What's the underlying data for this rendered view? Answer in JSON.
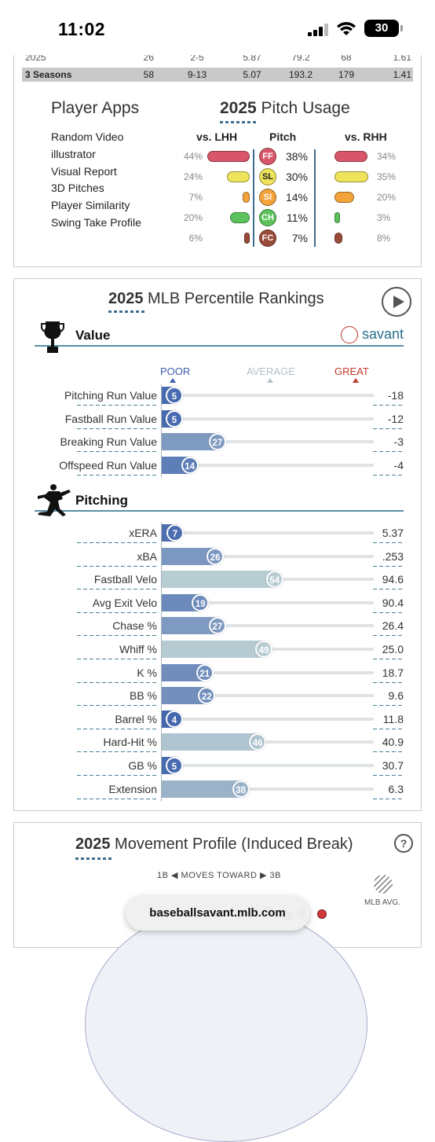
{
  "status": {
    "time": "11:02",
    "battery": "30"
  },
  "stats_table": {
    "rows": [
      {
        "season": "2025",
        "c1": "26",
        "c2": "2-5",
        "c3": "5.87",
        "c4": "79.2",
        "c5": "68",
        "c6": "1.61"
      },
      {
        "season": "3 Seasons",
        "c1": "58",
        "c2": "9-13",
        "c3": "5.07",
        "c4": "193.2",
        "c5": "179",
        "c6": "1.41"
      }
    ]
  },
  "player_apps": {
    "title": "Player Apps",
    "items": [
      "Random Video",
      "illustrator",
      "Visual Report",
      "3D Pitches",
      "Player Similarity",
      "Swing Take Profile"
    ]
  },
  "pitch_usage": {
    "title_year": "2025",
    "title_rest": " Pitch Usage",
    "headers": {
      "lhh": "vs. LHH",
      "pitch": "Pitch",
      "rhh": "vs. RHH"
    },
    "rows": [
      {
        "code": "FF",
        "pct": "38%",
        "lhh": "44%",
        "rhh": "34%",
        "lhh_val": 44,
        "rhh_val": 34,
        "color": "#d9566a",
        "text_color": "#ffffff"
      },
      {
        "code": "SL",
        "pct": "30%",
        "lhh": "24%",
        "rhh": "35%",
        "lhh_val": 24,
        "rhh_val": 35,
        "color": "#eee35a",
        "text_color": "#222222"
      },
      {
        "code": "SI",
        "pct": "14%",
        "lhh": "7%",
        "rhh": "20%",
        "lhh_val": 7,
        "rhh_val": 20,
        "color": "#f2a33a",
        "text_color": "#ffffff"
      },
      {
        "code": "CH",
        "pct": "11%",
        "lhh": "20%",
        "rhh": "3%",
        "lhh_val": 20,
        "rhh_val": 3,
        "color": "#5cc35c",
        "text_color": "#ffffff"
      },
      {
        "code": "FC",
        "pct": "7%",
        "lhh": "6%",
        "rhh": "8%",
        "lhh_val": 6,
        "rhh_val": 8,
        "color": "#9a4a3a",
        "text_color": "#ffffff"
      }
    ]
  },
  "percentile": {
    "title_year": "2025",
    "title_rest": " MLB Percentile Rankings",
    "value_label": "Value",
    "savant_label": "savant",
    "pitching_label": "Pitching",
    "scale": {
      "poor": "POOR",
      "average": "AVERAGE",
      "great": "GREAT"
    },
    "value_rows": [
      {
        "name": "Pitching Run Value",
        "pct": 5,
        "val": "-18"
      },
      {
        "name": "Fastball Run Value",
        "pct": 5,
        "val": "-12"
      },
      {
        "name": "Breaking Run Value",
        "pct": 27,
        "val": "-3"
      },
      {
        "name": "Offspeed Run Value",
        "pct": 14,
        "val": "-4"
      }
    ],
    "pitching_rows": [
      {
        "name": "xERA",
        "pct": 7,
        "val": "5.37"
      },
      {
        "name": "xBA",
        "pct": 26,
        "val": ".253"
      },
      {
        "name": "Fastball Velo",
        "pct": 54,
        "val": "94.6"
      },
      {
        "name": "Avg Exit Velo",
        "pct": 19,
        "val": "90.4"
      },
      {
        "name": "Chase %",
        "pct": 27,
        "val": "26.4"
      },
      {
        "name": "Whiff %",
        "pct": 49,
        "val": "25.0"
      },
      {
        "name": "K %",
        "pct": 21,
        "val": "18.7"
      },
      {
        "name": "BB %",
        "pct": 22,
        "val": "9.6"
      },
      {
        "name": "Barrel %",
        "pct": 4,
        "val": "11.8"
      },
      {
        "name": "Hard-Hit %",
        "pct": 46,
        "val": "40.9"
      },
      {
        "name": "GB %",
        "pct": 5,
        "val": "30.7"
      },
      {
        "name": "Extension",
        "pct": 38,
        "val": "6.3"
      }
    ],
    "colors": {
      "poor": "#3b5fac",
      "average_fill": "#b8cdd2",
      "great": "#c0392b"
    }
  },
  "movement": {
    "title_year": "2025",
    "title_rest": " Movement Profile (Induced Break)",
    "moves_left": "1B",
    "moves_mid": "MOVES TOWARD",
    "moves_right": "3B",
    "mlb_avg": "MLB AVG."
  },
  "url_bar": "baseballsavant.mlb.com"
}
